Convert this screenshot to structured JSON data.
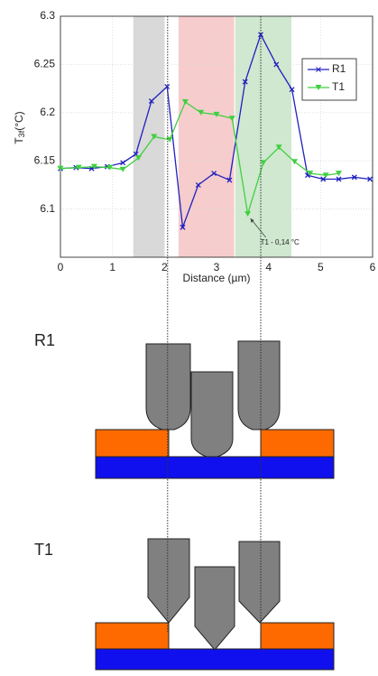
{
  "chart_data": {
    "type": "line",
    "y_label": "T",
    "y_label_sub": "3f",
    "y_label_unit": "(°C)",
    "x_label": "Distance (µm)",
    "xlim": [
      0,
      6
    ],
    "xticks": [
      0,
      1,
      2,
      3,
      4,
      5,
      6
    ],
    "ylim": [
      6.05,
      6.3
    ],
    "yticks": [
      {
        "value": 6.1,
        "label": "6.1"
      },
      {
        "value": 6.15,
        "label": "6.15"
      },
      {
        "value": 6.2,
        "label": "6.2"
      },
      {
        "value": 6.25,
        "label": "6.25"
      },
      {
        "value": 6.3,
        "label": "6.3"
      }
    ],
    "grid": true,
    "legend": "upper right",
    "bands": [
      {
        "range": [
          1.4,
          2.0
        ],
        "color": "#d9d9d9"
      },
      {
        "range": [
          2.27,
          3.34
        ],
        "color": "#f6cccc"
      },
      {
        "range": [
          3.36,
          4.44
        ],
        "color": "#cfe8cf"
      }
    ],
    "guides": [
      2.06,
      3.85
    ],
    "annotation": {
      "text": "T1 - 0,14 °C",
      "x": 3.6,
      "y": 6.095
    },
    "series": [
      {
        "name": "R1",
        "color": "#2020c0",
        "marker": "x",
        "x": [
          0,
          0.3,
          0.6,
          0.9,
          1.2,
          1.45,
          1.75,
          2.05,
          2.35,
          2.65,
          2.95,
          3.25,
          3.55,
          3.85,
          4.15,
          4.45,
          4.75,
          5.05,
          5.35,
          5.65,
          5.95
        ],
        "values": [
          6.142,
          6.143,
          6.142,
          6.144,
          6.148,
          6.157,
          6.212,
          6.227,
          6.081,
          6.125,
          6.137,
          6.13,
          6.232,
          6.281,
          6.25,
          6.224,
          6.135,
          6.131,
          6.131,
          6.133,
          6.131
        ]
      },
      {
        "name": "T1",
        "color": "#40d040",
        "marker": "v",
        "x": [
          0,
          0.35,
          0.65,
          0.95,
          1.2,
          1.5,
          1.8,
          2.1,
          2.4,
          2.7,
          3.0,
          3.3,
          3.6,
          3.9,
          4.2,
          4.5,
          4.8,
          5.1,
          5.35
        ],
        "values": [
          6.142,
          6.143,
          6.144,
          6.143,
          6.141,
          6.153,
          6.175,
          6.172,
          6.211,
          6.2,
          6.198,
          6.194,
          6.095,
          6.148,
          6.164,
          6.149,
          6.137,
          6.135,
          6.137
        ]
      }
    ]
  },
  "diagrams": [
    {
      "label": "R1"
    },
    {
      "label": "T1"
    }
  ]
}
